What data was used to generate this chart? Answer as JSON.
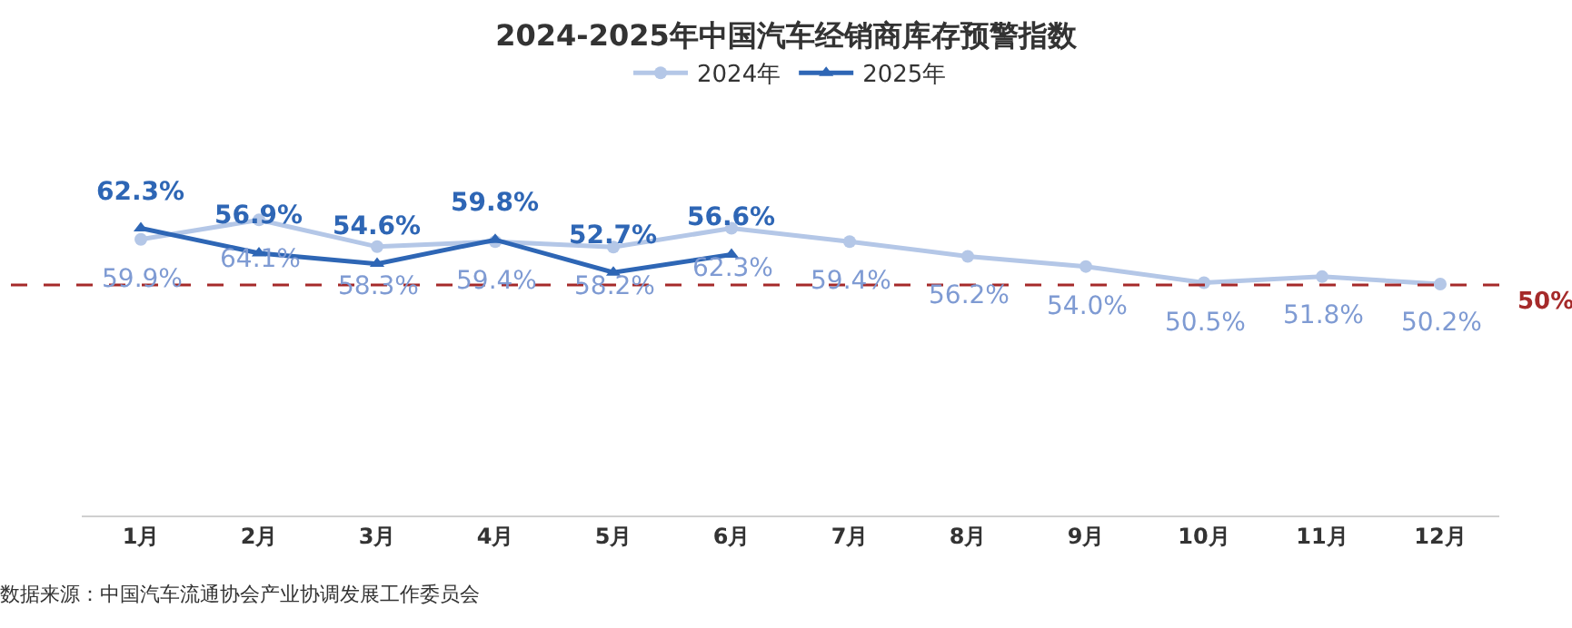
{
  "chart_data": {
    "type": "line",
    "title": "2024-2025年中国汽车经销商库存预警指数",
    "categories": [
      "1月",
      "2月",
      "3月",
      "4月",
      "5月",
      "6月",
      "7月",
      "8月",
      "9月",
      "10月",
      "11月",
      "12月"
    ],
    "series": [
      {
        "name": "2024年",
        "color": "#b4c7e7",
        "marker": "circle",
        "values": [
          59.9,
          64.1,
          58.3,
          59.4,
          58.2,
          62.3,
          59.4,
          56.2,
          54.0,
          50.5,
          51.8,
          50.2
        ],
        "value_labels": [
          "59.9%",
          "64.1%",
          "58.3%",
          "59.4%",
          "58.2%",
          "62.3%",
          "59.4%",
          "56.2%",
          "54.0%",
          "50.5%",
          "51.8%",
          "50.2%"
        ]
      },
      {
        "name": "2025年",
        "color": "#2e66b5",
        "marker": "triangle",
        "values": [
          62.3,
          56.9,
          54.6,
          59.8,
          52.7,
          56.6,
          null,
          null,
          null,
          null,
          null,
          null
        ],
        "value_labels": [
          "62.3%",
          "56.9%",
          "54.6%",
          "59.8%",
          "52.7%",
          "56.6%",
          null,
          null,
          null,
          null,
          null,
          null
        ]
      }
    ],
    "tick_labels": "x",
    "grid": false,
    "legend": "top",
    "line_style": "solid",
    "ref_lines": [
      {
        "axis": "y",
        "value": 50,
        "label": "50%",
        "color": "#a52a2a",
        "line_style": "dashed"
      }
    ],
    "annotations": [
      "数据来源：中国汽车流通协会产业协调发展工作委员会"
    ]
  }
}
